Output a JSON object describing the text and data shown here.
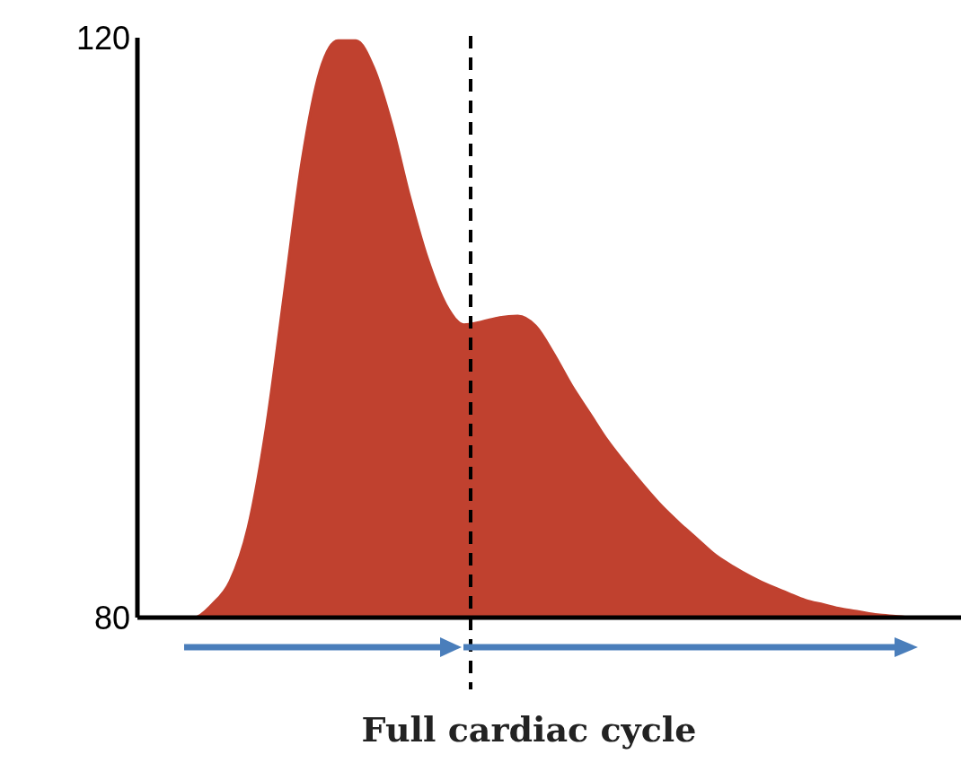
{
  "chart_data": {
    "type": "area",
    "xlabel": "Full cardiac cycle",
    "categories": [
      null,
      null,
      null,
      null,
      null,
      null,
      null,
      null,
      null,
      null,
      null,
      null,
      null,
      null,
      null,
      null,
      null,
      null,
      null,
      null,
      null,
      null,
      null,
      null,
      null,
      null,
      null,
      null,
      null,
      null,
      null,
      null,
      null,
      null,
      null,
      null,
      null,
      null,
      null,
      null,
      null,
      null,
      null,
      null,
      null,
      null
    ],
    "values": [
      80,
      80,
      80,
      80,
      80.9,
      82.5,
      86.2,
      93,
      102.2,
      111.5,
      117.7,
      119.8,
      119.8,
      117.9,
      114,
      109,
      104.7,
      101.6,
      100.2,
      100.4,
      100.7,
      100.8,
      100.1,
      98.2,
      96,
      94.1,
      92.2,
      90.6,
      89.1,
      87.7,
      86.5,
      85.4,
      84.3,
      83.5,
      82.8,
      82.2,
      81.7,
      81.2,
      80.9,
      80.6,
      80.4,
      80.2,
      80.1,
      80,
      80,
      80
    ],
    "color": "#c0412f",
    "ylim": [
      80,
      120
    ],
    "yticks": [
      80,
      120
    ],
    "tick_labels": "y"
  }
}
